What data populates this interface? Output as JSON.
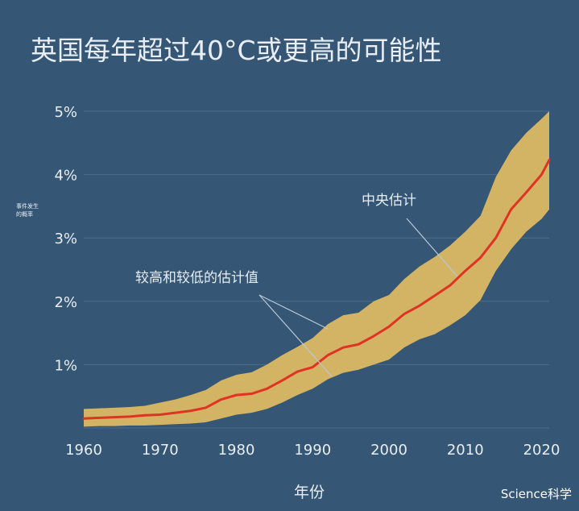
{
  "chart_data": {
    "type": "area",
    "title": "英国每年超过40°C或更高的可能性",
    "xlabel": "年份",
    "ylabel": "事件发生的概率",
    "ylabel_lines": [
      "事件发生",
      "的概率"
    ],
    "x_ticks": [
      "1960",
      "1970",
      "1980",
      "1990",
      "2000",
      "2010",
      "2020"
    ],
    "y_ticks": [
      "1%",
      "2%",
      "3%",
      "4%",
      "5%"
    ],
    "xlim": [
      1960,
      2021
    ],
    "ylim": [
      0,
      5
    ],
    "grid": true,
    "annotations": {
      "central": "中央估计",
      "band": "较高和较低的估计值"
    },
    "source_label": "Science科学",
    "colors": {
      "background": "#355674",
      "band": "#d3b464",
      "central_line": "#e03323",
      "grid": "#4f6e8a",
      "text": "#e8eef3"
    },
    "series": [
      {
        "role": "central",
        "x": [
          1960,
          1962,
          1964,
          1966,
          1968,
          1970,
          1972,
          1974,
          1976,
          1978,
          1980,
          1982,
          1984,
          1986,
          1988,
          1990,
          1992,
          1994,
          1996,
          1998,
          2000,
          2002,
          2004,
          2006,
          2008,
          2010,
          2012,
          2014,
          2016,
          2018,
          2020,
          2021
        ],
        "y": [
          0.15,
          0.16,
          0.17,
          0.18,
          0.2,
          0.21,
          0.24,
          0.27,
          0.32,
          0.45,
          0.52,
          0.54,
          0.62,
          0.75,
          0.89,
          0.96,
          1.15,
          1.27,
          1.32,
          1.45,
          1.6,
          1.8,
          1.93,
          2.09,
          2.25,
          2.48,
          2.69,
          3.0,
          3.45,
          3.72,
          4.0,
          4.23
        ]
      },
      {
        "role": "lower",
        "x": [
          1960,
          1962,
          1964,
          1966,
          1968,
          1970,
          1972,
          1974,
          1976,
          1978,
          1980,
          1982,
          1984,
          1986,
          1988,
          1990,
          1992,
          1994,
          1996,
          1998,
          2000,
          2002,
          2004,
          2006,
          2008,
          2010,
          2012,
          2014,
          2016,
          2018,
          2020,
          2021
        ],
        "y": [
          0.02,
          0.03,
          0.03,
          0.04,
          0.04,
          0.05,
          0.06,
          0.07,
          0.09,
          0.15,
          0.21,
          0.24,
          0.3,
          0.4,
          0.52,
          0.62,
          0.77,
          0.87,
          0.92,
          1.0,
          1.08,
          1.27,
          1.4,
          1.48,
          1.62,
          1.78,
          2.02,
          2.48,
          2.82,
          3.1,
          3.3,
          3.45
        ]
      },
      {
        "role": "upper",
        "x": [
          1960,
          1962,
          1964,
          1966,
          1968,
          1970,
          1972,
          1974,
          1976,
          1978,
          1980,
          1982,
          1984,
          1986,
          1988,
          1990,
          1992,
          1994,
          1996,
          1998,
          2000,
          2002,
          2004,
          2006,
          2008,
          2010,
          2012,
          2014,
          2016,
          2018,
          2020,
          2021
        ],
        "y": [
          0.3,
          0.31,
          0.32,
          0.33,
          0.35,
          0.4,
          0.45,
          0.52,
          0.6,
          0.75,
          0.84,
          0.88,
          1.0,
          1.15,
          1.28,
          1.42,
          1.64,
          1.78,
          1.82,
          2.0,
          2.1,
          2.35,
          2.55,
          2.7,
          2.88,
          3.1,
          3.35,
          3.96,
          4.38,
          4.66,
          4.88,
          5.0
        ]
      }
    ]
  }
}
